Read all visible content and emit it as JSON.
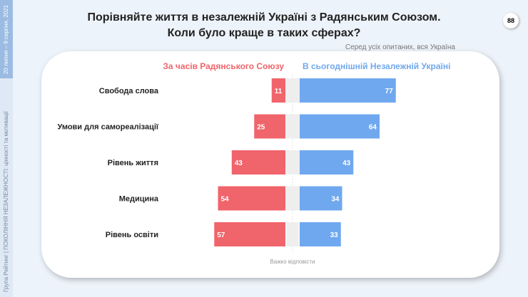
{
  "sidebar": {
    "date": "20 липня – 9 серпня, 2021",
    "footer": "Група Рейтинг | ПОКОЛІННЯ НЕЗАЛЕЖНОСТІ: цінності та мотивації"
  },
  "page_number": "88",
  "subtitle": "Серед усіх опитаних, вся Україна",
  "chart_data": {
    "type": "bar",
    "title": "Порівняйте життя в незалежній Україні з Радянським Союзом. Коли було краще в таких сферах?",
    "title_lines": [
      "Порівняйте життя в незалежній Україні з Радянським Союзом.",
      "Коли було краще в таких сферах?"
    ],
    "categories": [
      "Свобода слова",
      "Умови для самореалізації",
      "Рівень життя",
      "Медицина",
      "Рівень освіти"
    ],
    "series": [
      {
        "name": "За часів Радянського Союзу",
        "color": "#f0646b",
        "values": [
          11,
          25,
          43,
          54,
          57
        ]
      },
      {
        "name": "Важко відповісти",
        "color": "#eeeeee",
        "values": [
          12,
          11,
          14,
          12,
          10
        ]
      },
      {
        "name": "В сьогоднішній Незалежній Україні",
        "color": "#6fa8ee",
        "values": [
          77,
          64,
          43,
          34,
          33
        ]
      }
    ]
  }
}
